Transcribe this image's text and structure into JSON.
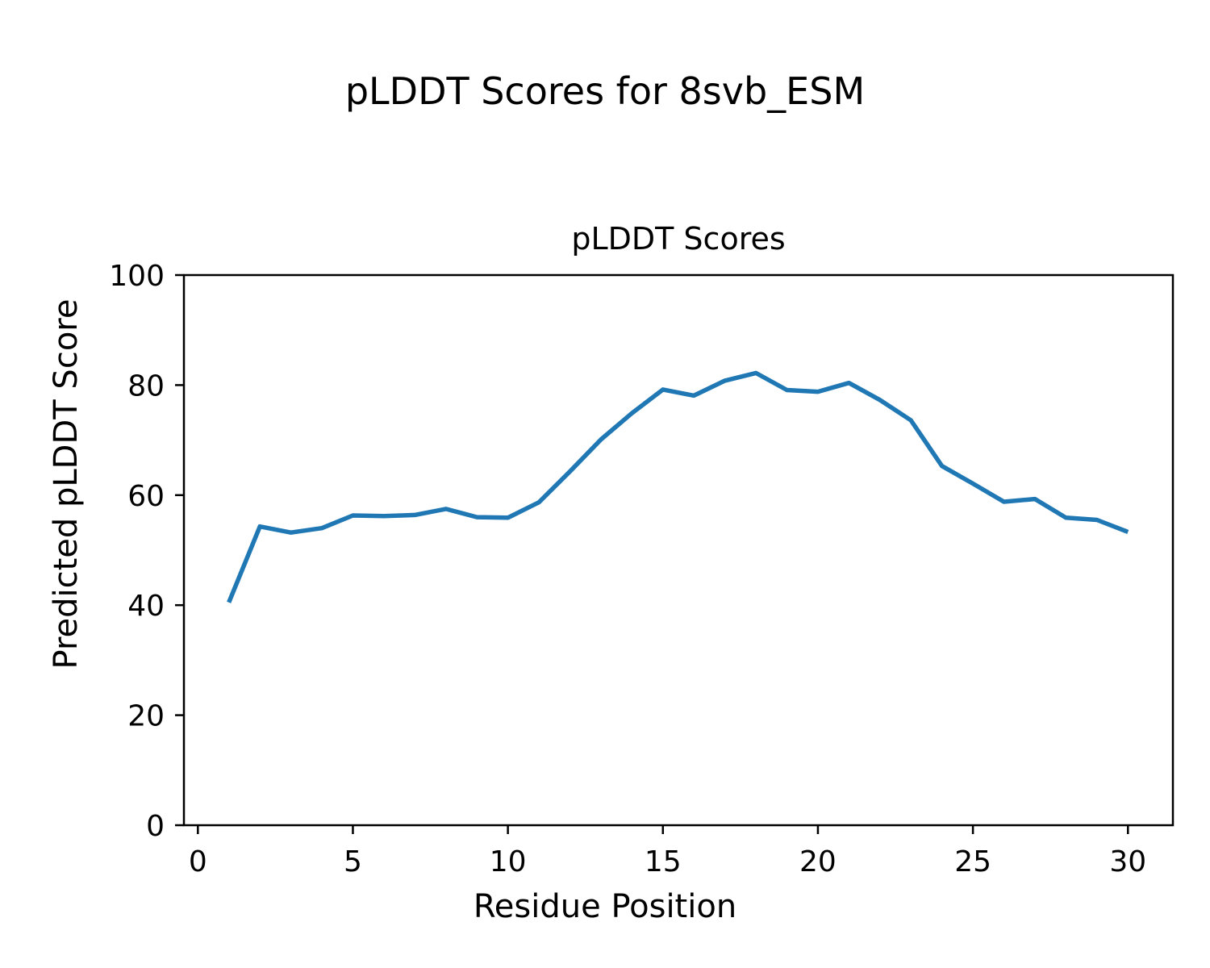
{
  "figure": {
    "suptitle": "pLDDT Scores for 8svb_ESM"
  },
  "chart_data": {
    "type": "line",
    "title": "pLDDT Scores",
    "xlabel": "Residue Position",
    "ylabel": "Predicted pLDDT Score",
    "series": [
      {
        "name": "pLDDT",
        "x": [
          1,
          2,
          3,
          4,
          5,
          6,
          7,
          8,
          9,
          10,
          11,
          12,
          13,
          14,
          15,
          16,
          17,
          18,
          19,
          20,
          21,
          22,
          23,
          24,
          25,
          26,
          27,
          28,
          29,
          30
        ],
        "y": [
          40.5,
          54.3,
          53.2,
          54.0,
          56.3,
          56.2,
          56.4,
          57.5,
          56.0,
          55.9,
          58.7,
          64.3,
          70.1,
          74.9,
          79.2,
          78.1,
          80.8,
          82.2,
          79.1,
          78.8,
          80.4,
          77.3,
          73.6,
          65.3,
          62.1,
          58.8,
          59.3,
          55.9,
          55.5,
          53.3
        ]
      }
    ],
    "xlim": [
      -0.45,
      31.45
    ],
    "ylim": [
      0,
      100
    ],
    "xticks": [
      0,
      5,
      10,
      15,
      20,
      25,
      30
    ],
    "yticks": [
      0,
      20,
      40,
      60,
      80,
      100
    ],
    "grid": false,
    "legend": "none",
    "line_color": "#1f77b4",
    "axis_color": "#000000",
    "background_color": "#ffffff"
  }
}
